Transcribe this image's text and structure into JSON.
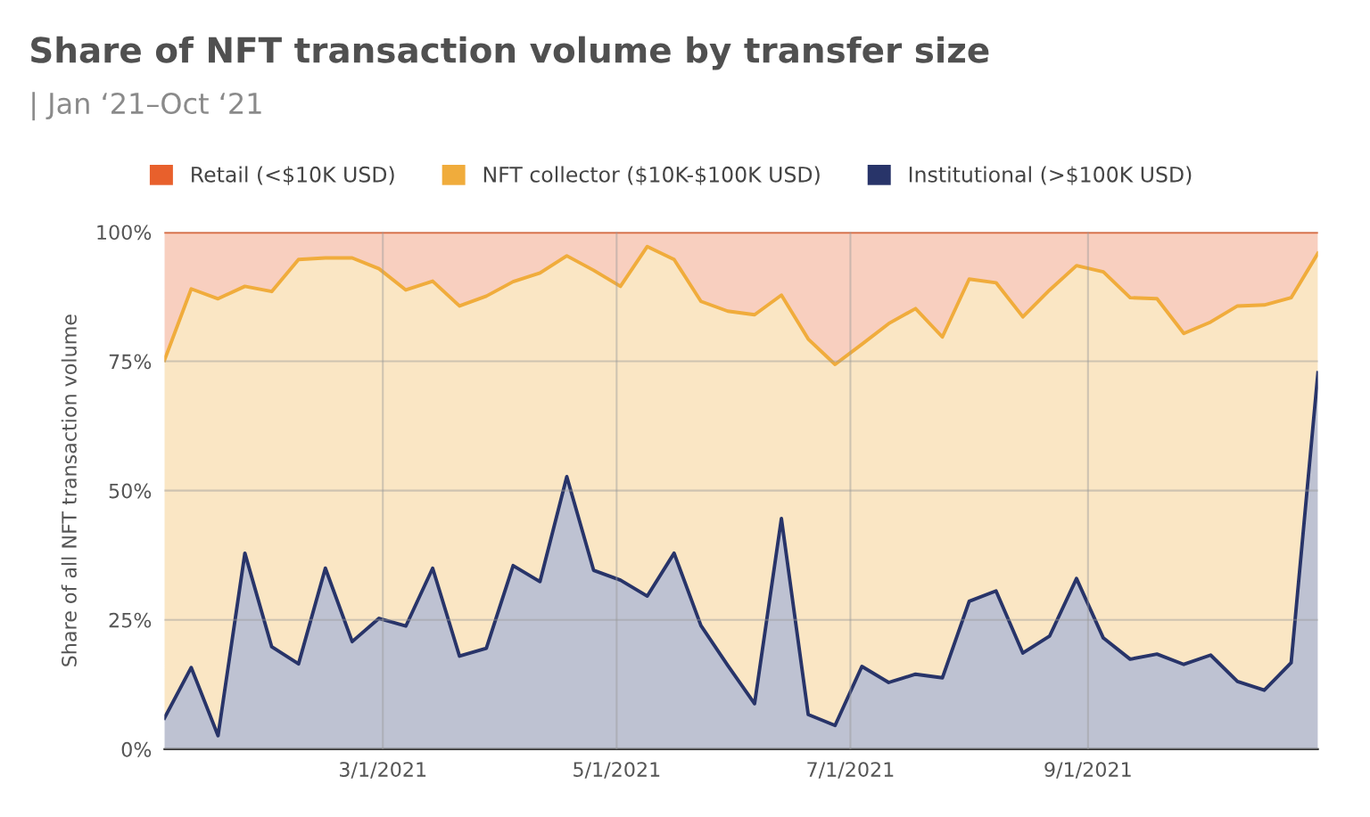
{
  "chart_data": {
    "type": "area",
    "stacked": true,
    "title": "Share of NFT transaction volume by transfer size",
    "subtitle": "| Jan ‘21–Oct ‘21",
    "ylabel": "Share of all NFT transaction volume",
    "x": [
      "2021-01-03",
      "2021-01-10",
      "2021-01-17",
      "2021-01-24",
      "2021-01-31",
      "2021-02-07",
      "2021-02-14",
      "2021-02-21",
      "2021-02-28",
      "2021-03-07",
      "2021-03-14",
      "2021-03-21",
      "2021-03-28",
      "2021-04-04",
      "2021-04-11",
      "2021-04-18",
      "2021-04-25",
      "2021-05-02",
      "2021-05-09",
      "2021-05-16",
      "2021-05-23",
      "2021-05-30",
      "2021-06-06",
      "2021-06-13",
      "2021-06-20",
      "2021-06-27",
      "2021-07-04",
      "2021-07-11",
      "2021-07-18",
      "2021-07-25",
      "2021-08-01",
      "2021-08-08",
      "2021-08-15",
      "2021-08-22",
      "2021-08-29",
      "2021-09-05",
      "2021-09-12",
      "2021-09-19",
      "2021-09-26",
      "2021-10-03",
      "2021-10-10",
      "2021-10-17",
      "2021-10-24",
      "2021-10-31"
    ],
    "series": [
      {
        "name": "Institutional (>$100K USD)",
        "color": "#283469",
        "values": [
          6,
          15.8,
          2.6,
          37.9,
          19.8,
          16.5,
          35,
          20.8,
          25.3,
          23.8,
          35,
          18,
          19.5,
          35.5,
          32.4,
          52.7,
          34.6,
          32.7,
          29.6,
          37.9,
          23.9,
          16.2,
          8.8,
          44.6,
          6.7,
          4.6,
          16,
          12.9,
          14.5,
          13.8,
          28.6,
          30.6,
          18.6,
          21.9,
          33,
          21.5,
          17.4,
          18.4,
          16.4,
          18.2,
          13.1,
          11.4,
          16.7,
          72.8
        ]
      },
      {
        "name": "NFT collector ($10K-$100K USD)",
        "color": "#f0ac3c",
        "values": [
          69.2,
          73.2,
          84.5,
          51.6,
          68.7,
          78.2,
          60,
          74.2,
          67.6,
          65,
          55.5,
          67.7,
          68.1,
          54.9,
          59.7,
          42.7,
          58,
          56.8,
          67.6,
          56.8,
          62.7,
          68.5,
          75.2,
          43.2,
          72.6,
          69.8,
          62.3,
          69.4,
          70.7,
          65.9,
          62.3,
          59.6,
          65,
          66.9,
          60.5,
          70.8,
          69.9,
          68.7,
          64,
          64.4,
          72.6,
          74.5,
          70.6,
          23.1
        ]
      },
      {
        "name": "Retail (<$10K USD)",
        "color": "#e8602c",
        "values": [
          24.8,
          11,
          12.9,
          10.5,
          11.5,
          5.3,
          5,
          5,
          7.1,
          11.2,
          9.5,
          14.3,
          12.4,
          9.6,
          7.9,
          4.6,
          7.4,
          10.5,
          2.8,
          5.3,
          13.4,
          15.3,
          16,
          12.2,
          20.7,
          25.6,
          21.7,
          17.7,
          14.8,
          20.3,
          9.1,
          9.8,
          16.4,
          11.2,
          6.5,
          7.7,
          12.7,
          12.9,
          19.6,
          17.4,
          14.3,
          14.1,
          12.7,
          4.1
        ]
      }
    ],
    "xlim": [
      "2021-01-03",
      "2021-10-31"
    ],
    "xticks": [
      {
        "value": "2021-03-01",
        "label": "3/1/2021"
      },
      {
        "value": "2021-05-01",
        "label": "5/1/2021"
      },
      {
        "value": "2021-07-01",
        "label": "7/1/2021"
      },
      {
        "value": "2021-09-01",
        "label": "9/1/2021"
      }
    ],
    "ylim": [
      0,
      100
    ],
    "yticks": [
      {
        "value": 0,
        "label": "0%"
      },
      {
        "value": 25,
        "label": "25%"
      },
      {
        "value": 50,
        "label": "50%"
      },
      {
        "value": 75,
        "label": "75%"
      },
      {
        "value": 100,
        "label": "100%"
      }
    ],
    "grid": true,
    "legend": "top"
  }
}
